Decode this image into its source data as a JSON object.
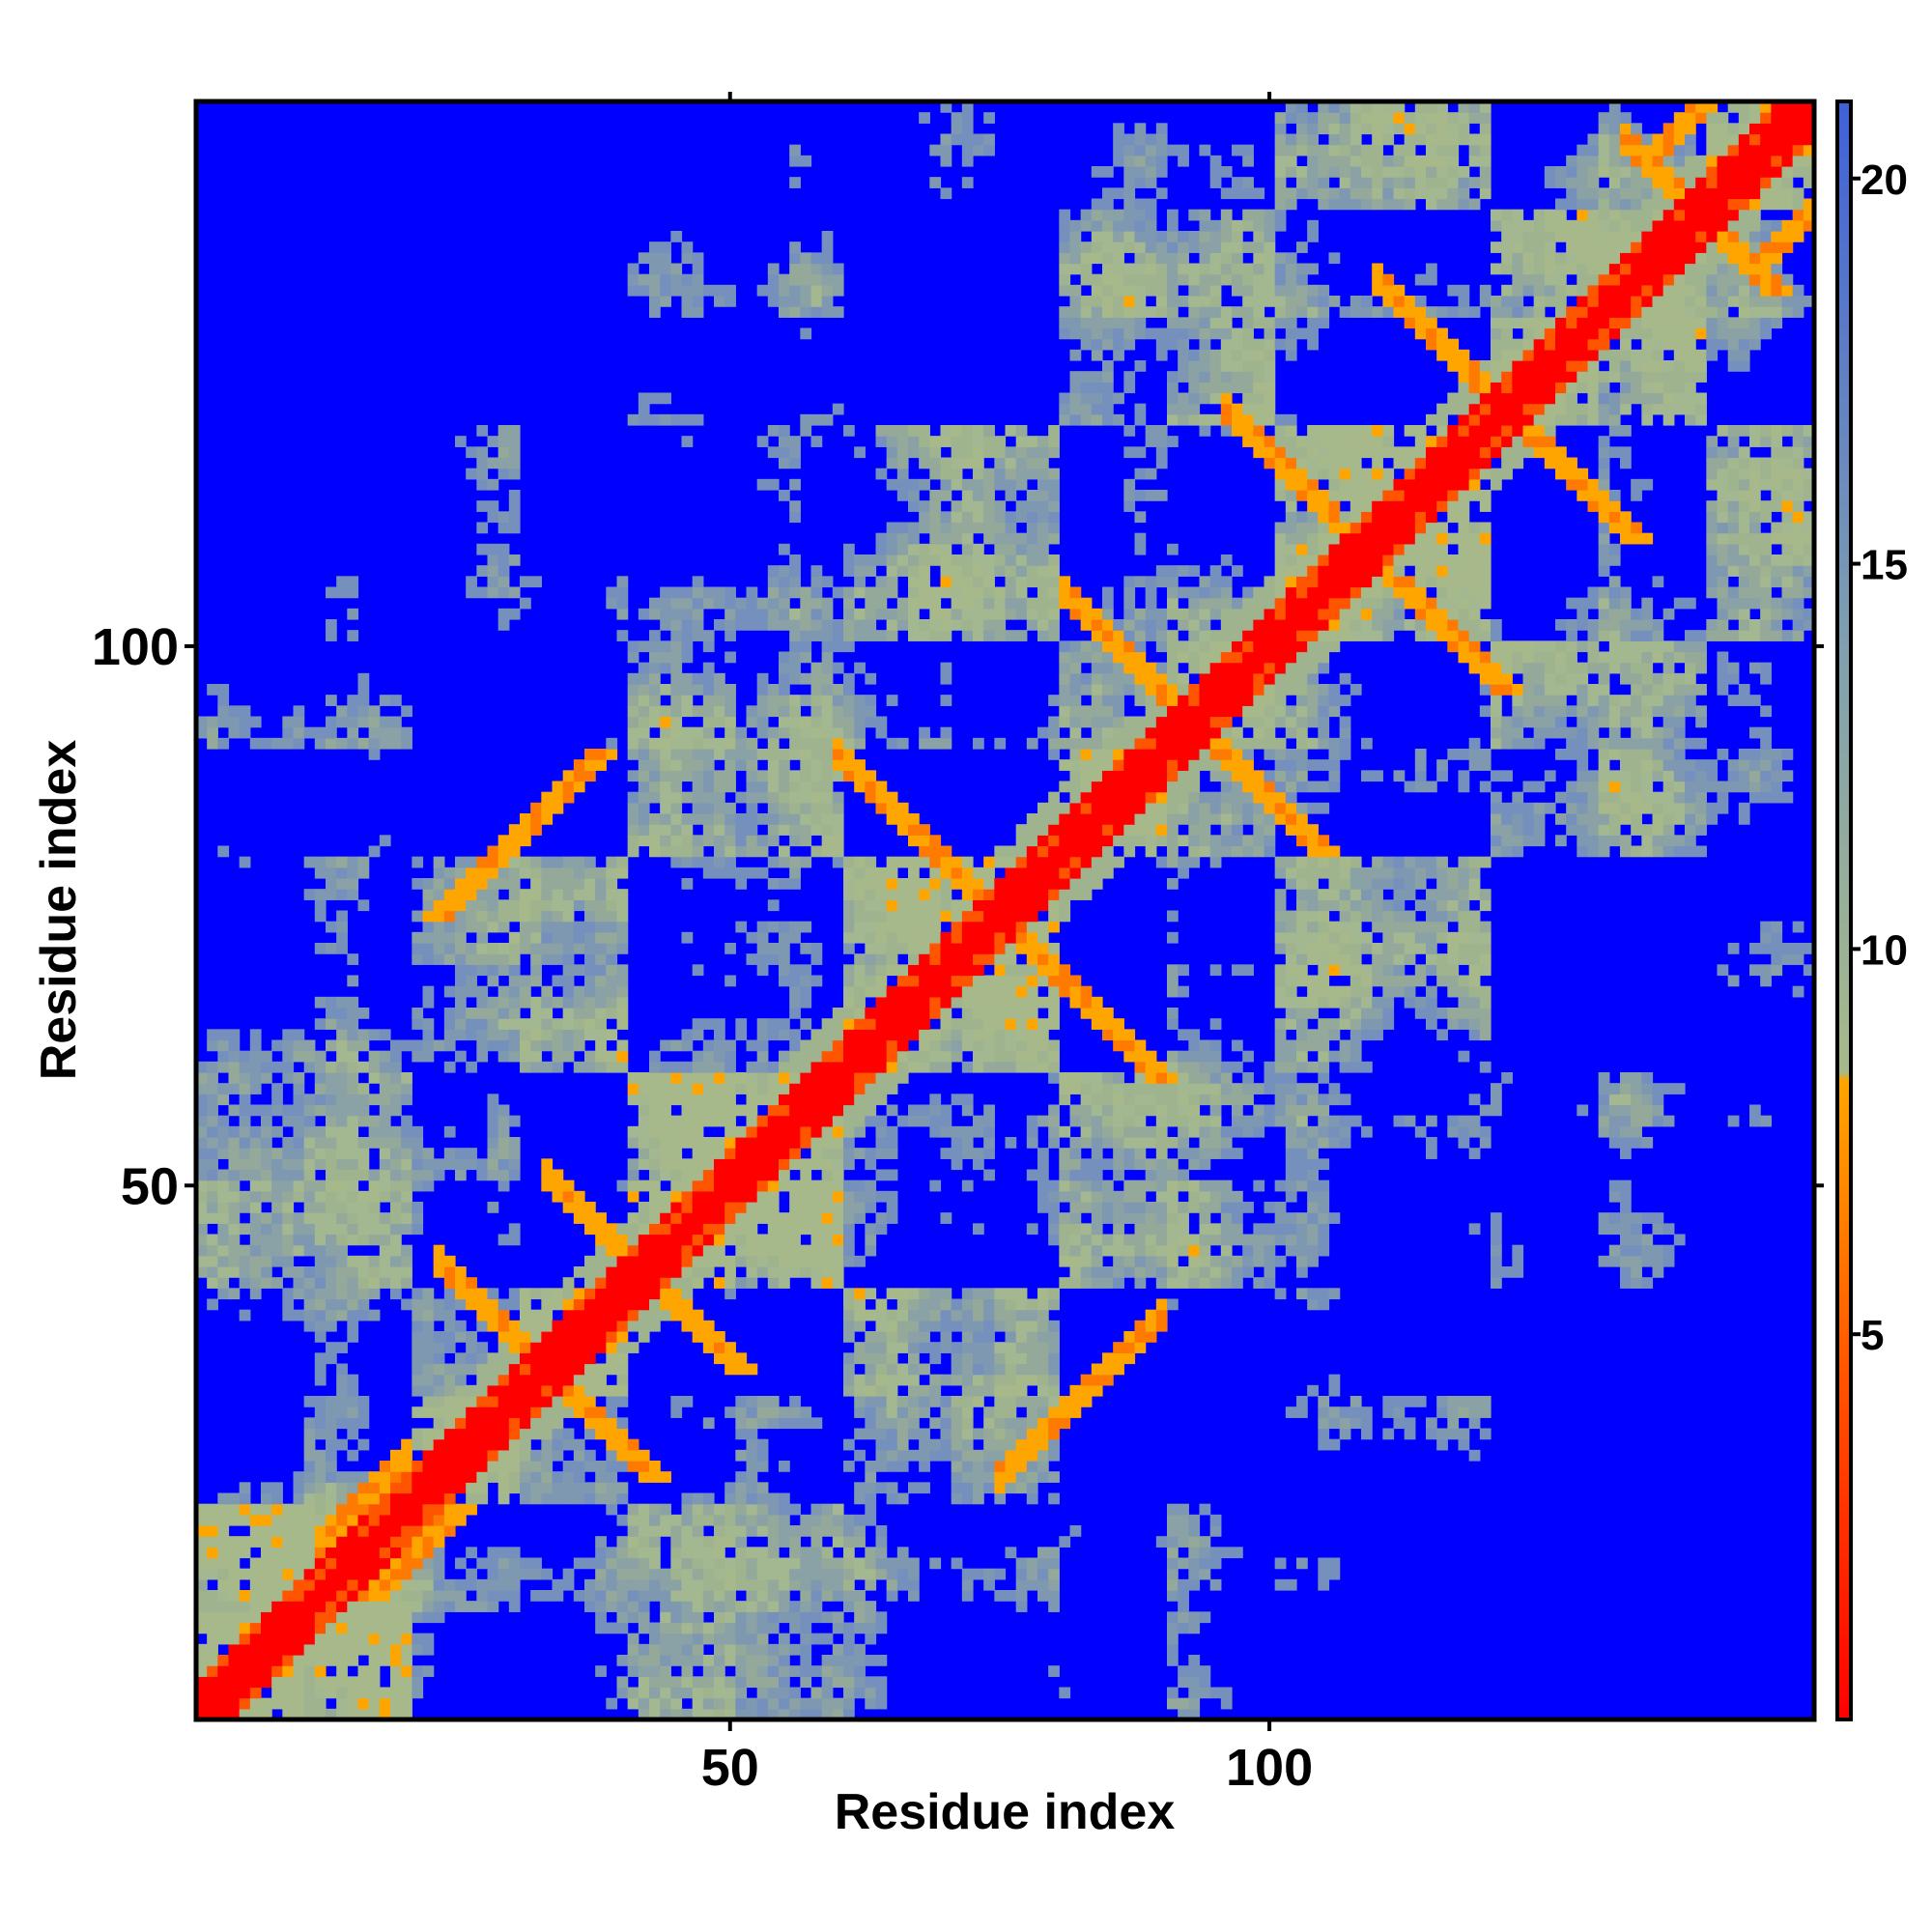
{
  "chart_data": {
    "type": "heatmap",
    "title": "",
    "xlabel": "Residue index",
    "ylabel": "Residue index",
    "n_residues": 150,
    "xlim": [
      1,
      150
    ],
    "ylim": [
      1,
      150
    ],
    "x_ticks": [
      50,
      100
    ],
    "y_ticks": [
      50,
      100
    ],
    "x_tick_labels": [
      "50",
      "100"
    ],
    "y_tick_labels": [
      "50",
      "100"
    ],
    "colorbar": {
      "range": [
        0,
        21
      ],
      "ticks": [
        5,
        10,
        15,
        20
      ],
      "tick_labels": [
        "5",
        "10",
        "15",
        "20"
      ],
      "stops": [
        {
          "value": 0,
          "color": "#ff0000"
        },
        {
          "value": 4.5,
          "color": "#ff5500"
        },
        {
          "value": 8.3,
          "color": "#ffa500"
        },
        {
          "value": 8.4,
          "color": "#a7b98a"
        },
        {
          "value": 14,
          "color": "#7f9fb0"
        },
        {
          "value": 21,
          "color": "#4060d8"
        }
      ],
      "background_color": "#0000ff",
      "background_threshold": 21
    },
    "colors": {
      "diagonal": "#ff0000",
      "contact": "#ffa500",
      "medium": "#a7b98a",
      "far": "#6f8cc4",
      "background": "#0000ff"
    },
    "contact_bands": [
      {
        "orientation": "antiparallel",
        "sum": 186,
        "from": 81,
        "to": 102
      },
      {
        "orientation": "antiparallel",
        "sum": 150,
        "from": 60,
        "to": 76
      },
      {
        "orientation": "antiparallel",
        "sum": 84,
        "from": 33,
        "to": 45
      },
      {
        "orientation": "antiparallel",
        "sum": 66,
        "from": 23,
        "to": 31
      },
      {
        "orientation": "antiparallel",
        "sum": 218,
        "from": 96,
        "to": 106
      },
      {
        "orientation": "antiparallel",
        "sum": 244,
        "from": 110,
        "to": 120
      },
      {
        "orientation": "antiparallel",
        "sum": 280,
        "from": 133,
        "to": 142
      },
      {
        "orientation": "parallel",
        "offset": 5,
        "from": 12,
        "to": 20
      },
      {
        "orientation": "parallel",
        "offset": -52,
        "from": 75,
        "to": 90
      },
      {
        "orientation": "parallel",
        "offset": 10,
        "from": 135,
        "to": 146
      }
    ]
  }
}
